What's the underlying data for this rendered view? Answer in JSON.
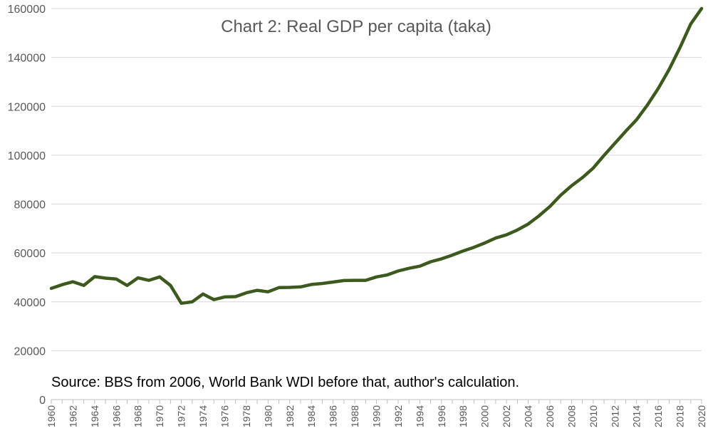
{
  "chart_data": {
    "type": "line",
    "title": "Chart 2: Real GDP per capita (taka)",
    "annotation": "Source: BBS from 2006, World Bank WDI before that, author's calculation.",
    "xlabel": "",
    "ylabel": "",
    "ylim": [
      0,
      160000
    ],
    "y_ticks": [
      "0",
      "20000",
      "40000",
      "60000",
      "80000",
      "100000",
      "120000",
      "140000",
      "160000"
    ],
    "x_ticks": [
      "1960",
      "1962",
      "1964",
      "1966",
      "1968",
      "1970",
      "1972",
      "1974",
      "1976",
      "1978",
      "1980",
      "1982",
      "1984",
      "1986",
      "1988",
      "1990",
      "1992",
      "1994",
      "1996",
      "1998",
      "2000",
      "2002",
      "2004",
      "2006",
      "2008",
      "2010",
      "2012",
      "2014",
      "2016",
      "2018",
      "2020"
    ],
    "grid": "horizontal",
    "line_color": "#3d5a1e",
    "grid_color": "#d9d9d9",
    "axis_color": "#bfbfbf",
    "series": [
      {
        "x": [
          1960,
          1961,
          1962,
          1963,
          1964,
          1965,
          1966,
          1967,
          1968,
          1969,
          1970,
          1971,
          1972,
          1973,
          1974,
          1975,
          1976,
          1977,
          1978,
          1979,
          1980,
          1981,
          1982,
          1983,
          1984,
          1985,
          1986,
          1987,
          1988,
          1989,
          1990,
          1991,
          1992,
          1993,
          1994,
          1995,
          1996,
          1997,
          1998,
          1999,
          2000,
          2001,
          2002,
          2003,
          2004,
          2005,
          2006,
          2007,
          2008,
          2009,
          2010,
          2011,
          2012,
          2013,
          2014,
          2015,
          2016,
          2017,
          2018,
          2019,
          2020
        ],
        "values": [
          45500,
          47000,
          48200,
          46700,
          50300,
          49700,
          49300,
          46700,
          49800,
          48800,
          50200,
          46700,
          39400,
          40000,
          43200,
          40900,
          42000,
          42100,
          43700,
          44700,
          44100,
          45800,
          45900,
          46100,
          47100,
          47500,
          48100,
          48700,
          48800,
          48800,
          50200,
          51000,
          52600,
          53700,
          54600,
          56400,
          57600,
          59100,
          60800,
          62300,
          64100,
          66100,
          67400,
          69400,
          71800,
          75200,
          79000,
          83600,
          87500,
          90800,
          94700,
          99900,
          104900,
          109800,
          114500,
          120500,
          127300,
          135000,
          144000,
          153700,
          160000
        ]
      }
    ]
  }
}
